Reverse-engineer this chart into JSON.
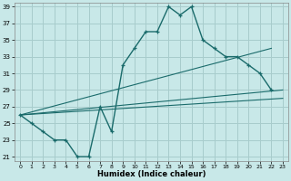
{
  "bg_color": "#c8e8e8",
  "grid_color": "#a8cccc",
  "line_color": "#1a6b6b",
  "xlim": [
    -0.5,
    23.5
  ],
  "ylim": [
    20.5,
    39.5
  ],
  "xticks": [
    0,
    1,
    2,
    3,
    4,
    5,
    6,
    7,
    8,
    9,
    10,
    11,
    12,
    13,
    14,
    15,
    16,
    17,
    18,
    19,
    20,
    21,
    22,
    23
  ],
  "yticks": [
    21,
    23,
    25,
    27,
    29,
    31,
    33,
    35,
    37,
    39
  ],
  "xlabel": "Humidex (Indice chaleur)",
  "main_x": [
    0,
    1,
    2,
    3,
    4,
    5,
    6,
    7,
    8,
    9,
    10,
    11,
    12,
    13,
    14,
    15,
    16,
    17,
    18,
    19,
    20,
    21,
    22
  ],
  "main_y": [
    26,
    25,
    24,
    23,
    23,
    21,
    21,
    27,
    24,
    32,
    34,
    36,
    36,
    39,
    38,
    39,
    35,
    34,
    33,
    33,
    32,
    31,
    29
  ],
  "line1_x": [
    0,
    23
  ],
  "line1_y": [
    26,
    29
  ],
  "line2_x": [
    0,
    23
  ],
  "line2_y": [
    26,
    28
  ],
  "line3_x": [
    0,
    22
  ],
  "line3_y": [
    26,
    34
  ]
}
